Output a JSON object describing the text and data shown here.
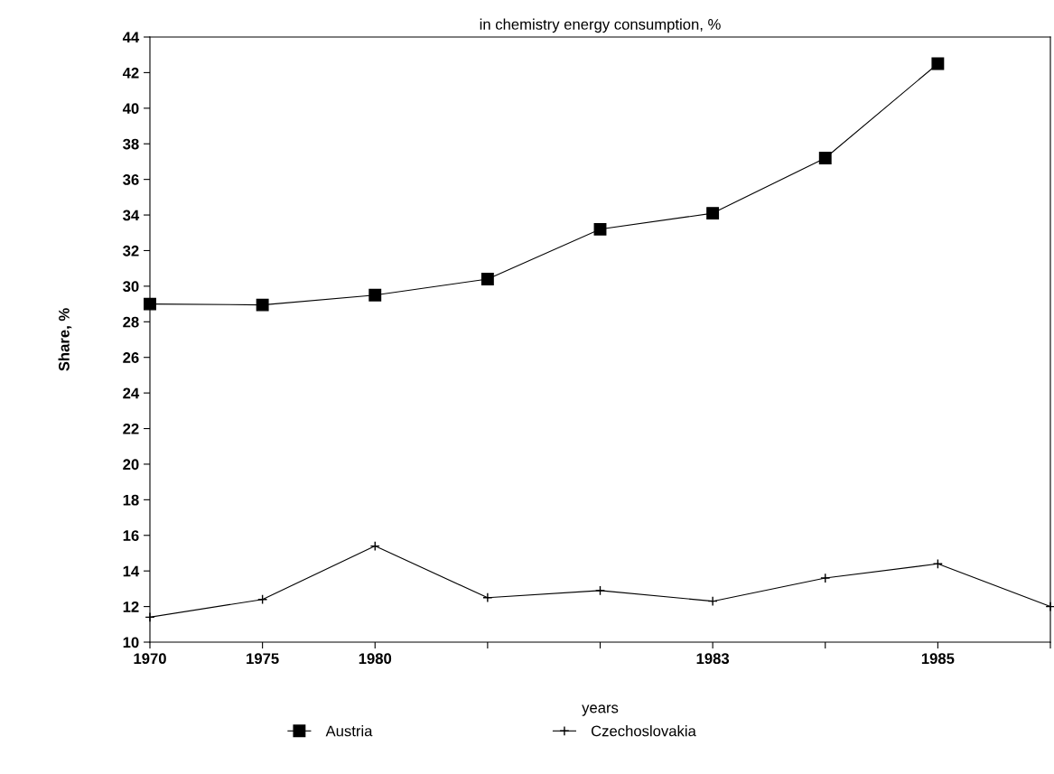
{
  "chart_data": {
    "type": "line",
    "title": "in chemistry energy consumption, %",
    "xlabel": "years",
    "ylabel": "Share, %",
    "categories": [
      "1970",
      "1975",
      "1980",
      null,
      null,
      "1983",
      null,
      "1985",
      null
    ],
    "series": [
      {
        "name": "Austria",
        "color": "#000000",
        "marker": "square",
        "values": [
          29.0,
          28.95,
          29.5,
          30.4,
          33.2,
          34.1,
          37.2,
          42.5,
          null
        ]
      },
      {
        "name": "Czechoslovakia",
        "color": "#000000",
        "marker": "cross",
        "values": [
          11.4,
          12.4,
          15.4,
          12.5,
          12.9,
          12.3,
          13.6,
          14.4,
          12.0
        ]
      }
    ],
    "ylim": [
      10,
      44
    ],
    "yticks": [
      10,
      12,
      14,
      16,
      18,
      20,
      22,
      24,
      26,
      28,
      30,
      32,
      34,
      36,
      38,
      40,
      42,
      44
    ],
    "grid": false,
    "legend": "bottom",
    "line_style": "solid"
  }
}
